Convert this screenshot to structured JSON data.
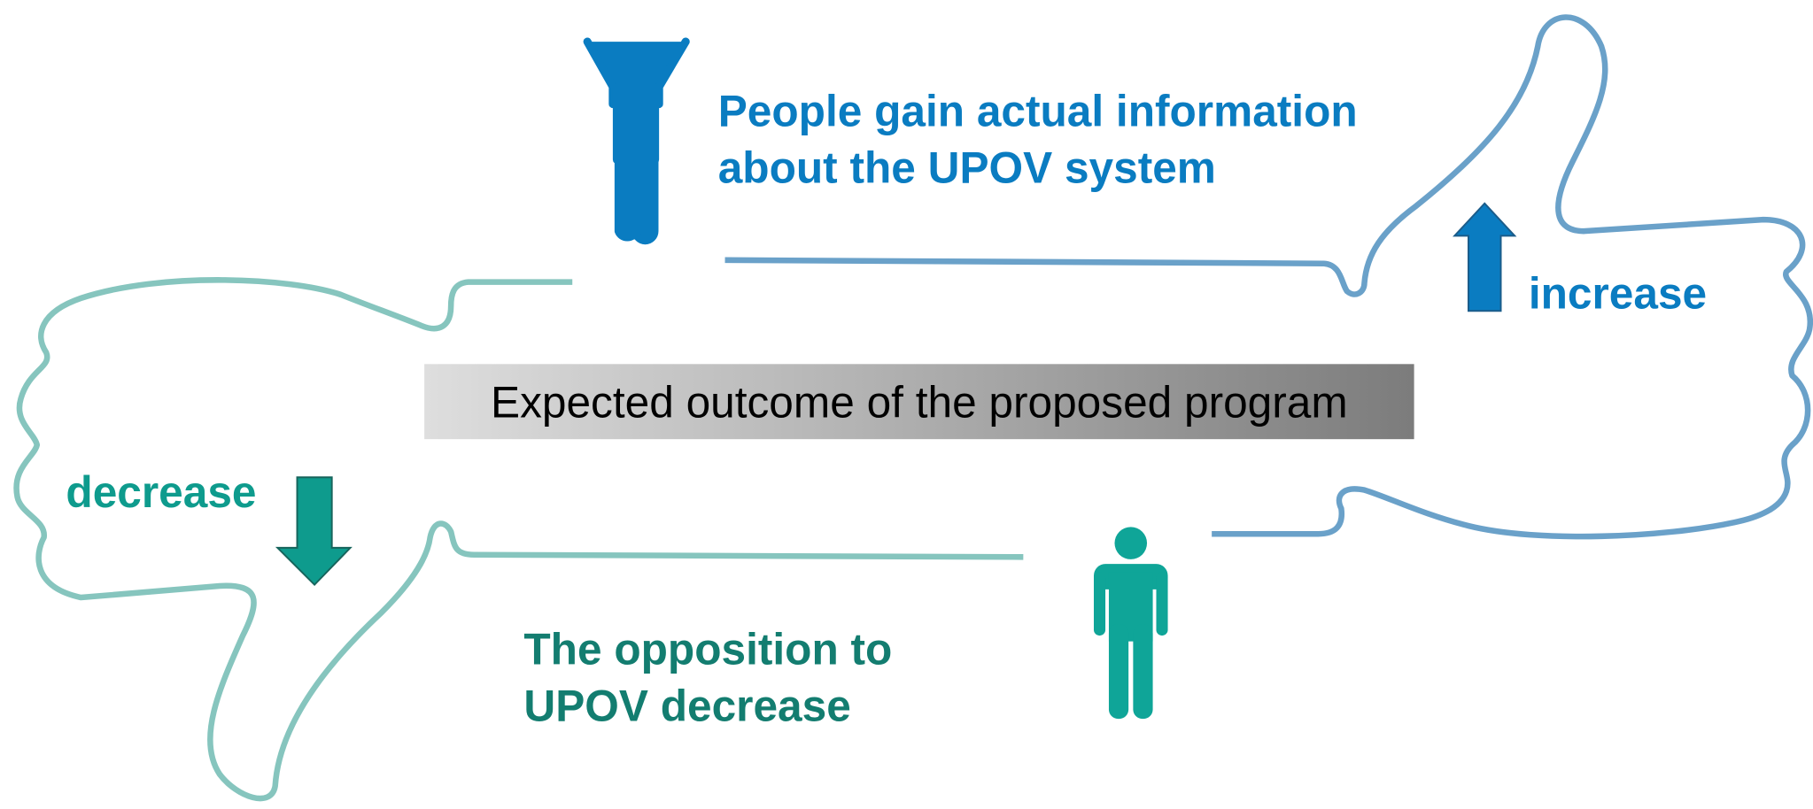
{
  "top_statement": {
    "lines": [
      "People gain actual information",
      "about the UPOV system"
    ]
  },
  "increase_label": "increase",
  "center_banner": "Expected outcome of the proposed program",
  "decrease_label": "decrease",
  "bottom_statement": {
    "lines": [
      "The opposition to",
      "UPOV decrease"
    ]
  }
}
